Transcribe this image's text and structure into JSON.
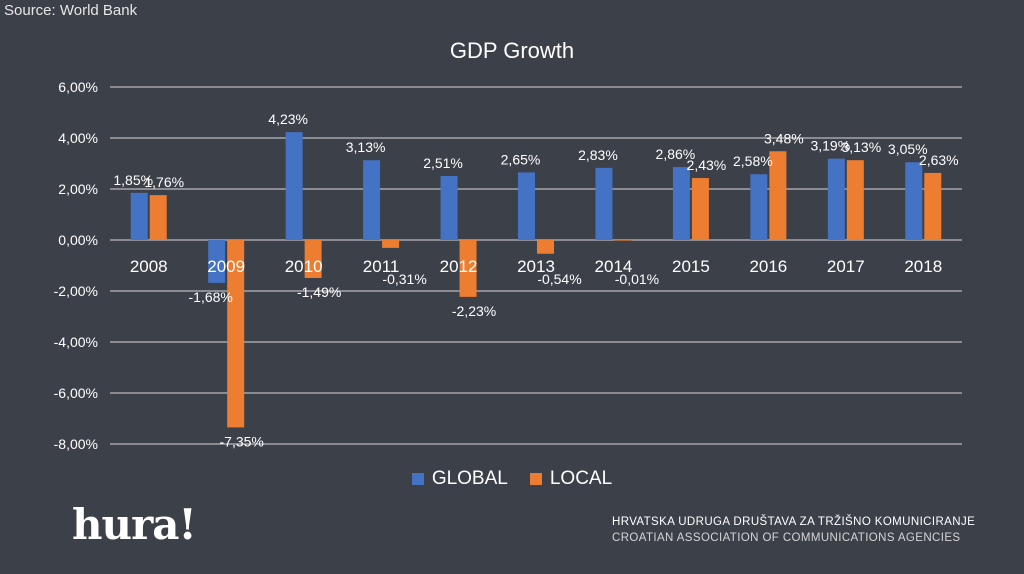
{
  "source": "Source: World Bank",
  "colors": {
    "global": "#4472c4",
    "local": "#ed7d31",
    "background": "#3c4049"
  },
  "chart_data": {
    "type": "bar",
    "title": "GDP Growth",
    "categories": [
      "2008",
      "2009",
      "2010",
      "2011",
      "2012",
      "2013",
      "2014",
      "2015",
      "2016",
      "2017",
      "2018"
    ],
    "series": [
      {
        "name": "GLOBAL",
        "values": [
          1.85,
          -1.68,
          4.23,
          3.13,
          2.51,
          2.65,
          2.83,
          2.86,
          2.58,
          3.19,
          3.05
        ],
        "labels": [
          "1,85%",
          "-1,68%",
          "4,23%",
          "3,13%",
          "2,51%",
          "2,65%",
          "2,83%",
          "2,86%",
          "2,58%",
          "3,19%",
          "3,05%"
        ]
      },
      {
        "name": "LOCAL",
        "values": [
          1.76,
          -7.35,
          -1.49,
          -0.31,
          -2.23,
          -0.54,
          -0.01,
          2.43,
          3.48,
          3.13,
          2.63
        ],
        "labels": [
          "1,76%",
          "-7,35%",
          "-1,49%",
          "-0,31%",
          "-2,23%",
          "-0,54%",
          "-0,01%",
          "2,43%",
          "3,48%",
          "3,13%",
          "2,63%"
        ]
      }
    ],
    "ylim": [
      -8,
      6
    ],
    "yticks": [
      6,
      4,
      2,
      0,
      -2,
      -4,
      -6,
      -8
    ],
    "ytick_labels": [
      "6,00%",
      "4,00%",
      "2,00%",
      "0,00%",
      "-2,00%",
      "-4,00%",
      "-6,00%",
      "-8,00%"
    ],
    "grid": true,
    "legend": "bottom"
  },
  "footer": {
    "logo": "hura!",
    "assoc_line1": "HRVATSKA UDRUGA DRUŠTAVA ZA TRŽIŠNO KOMUNICIRANJE",
    "assoc_line2": "CROATIAN ASSOCIATION OF COMMUNICATIONS AGENCIES"
  }
}
